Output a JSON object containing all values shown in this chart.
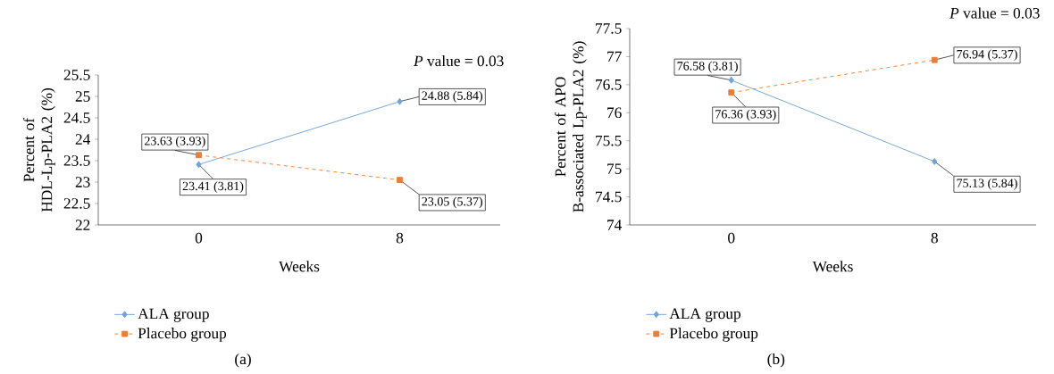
{
  "chart_data": [
    {
      "type": "line",
      "categories": [
        "0",
        "8"
      ],
      "xlabel": "Weeks",
      "ylabel": "Percent of HDL-Lp-PLA2 (%)",
      "ylim": [
        22,
        25.5
      ],
      "yticks": [
        22,
        22.5,
        23,
        23.5,
        24,
        24.5,
        25,
        25.5
      ],
      "legend": "bottom",
      "grid": false,
      "annotations": [
        "*P* value = 0.03",
        "(a)"
      ],
      "series": [
        {
          "name": "ALA group",
          "color": "#6fa3d9",
          "marker": "diamond",
          "line_style": "solid",
          "values": [
            23.41,
            24.88
          ],
          "value_labels": [
            "23.41 (3.81)",
            "24.88 (5.84)"
          ]
        },
        {
          "name": "Placebo group",
          "color": "#ed7d31",
          "marker": "square",
          "line_style": "dashed",
          "values": [
            23.63,
            23.05
          ],
          "value_labels": [
            "23.63 (3.93)",
            "23.05 (5.37)"
          ]
        }
      ]
    },
    {
      "type": "line",
      "categories": [
        "0",
        "8"
      ],
      "xlabel": "Weeks",
      "ylabel": "Percent of APO B-associated Lp-PLA2 (%)",
      "ylim": [
        74,
        77.5
      ],
      "yticks": [
        74,
        74.5,
        75,
        75.5,
        76,
        76.5,
        77,
        77.5
      ],
      "legend": "bottom",
      "grid": false,
      "annotations": [
        "*P* value = 0.03",
        "(b)"
      ],
      "series": [
        {
          "name": "ALA group",
          "color": "#6fa3d9",
          "marker": "diamond",
          "line_style": "solid",
          "values": [
            76.58,
            75.13
          ],
          "value_labels": [
            "76.58 (3.81)",
            "75.13 (5.84)"
          ]
        },
        {
          "name": "Placebo group",
          "color": "#ed7d31",
          "marker": "square",
          "line_style": "dashed",
          "values": [
            76.36,
            76.94
          ],
          "value_labels": [
            "76.36 (3.93)",
            "76.94 (5.37)"
          ]
        }
      ]
    }
  ]
}
